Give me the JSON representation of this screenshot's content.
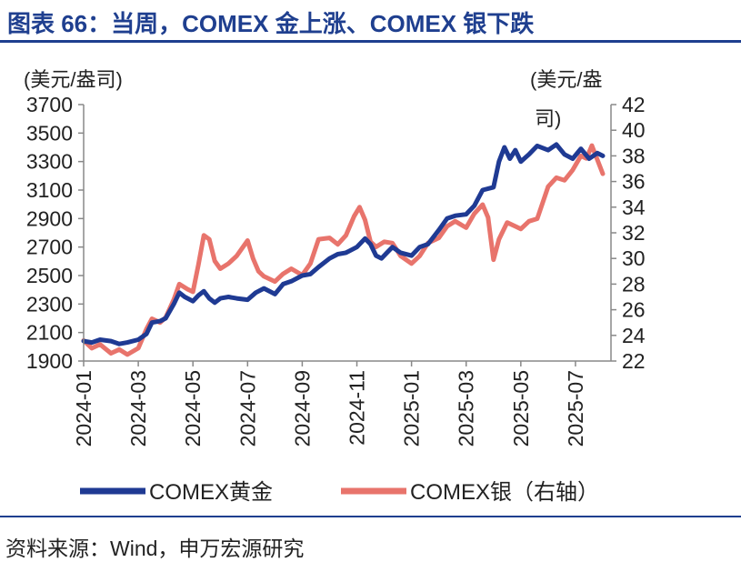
{
  "figure": {
    "title": "图表 66：当周，COMEX 金上涨、COMEX 银下跌",
    "source": "资料来源：Wind，申万宏源研究"
  },
  "chart_data": {
    "type": "line",
    "left_unit": "(美元/盎司)",
    "right_unit_line1": "(美元/盎",
    "right_unit_line2": "司)",
    "x_tick_labels": [
      "2024-01",
      "2024-03",
      "2024-05",
      "2024-07",
      "2024-09",
      "2024-11",
      "2025-01",
      "2025-03",
      "2025-05",
      "2025-07"
    ],
    "x_range_months": [
      0,
      19.3
    ],
    "y_left": {
      "range": [
        1900,
        3700
      ],
      "ticks": [
        "3700",
        "3500",
        "3300",
        "3100",
        "2900",
        "2700",
        "2500",
        "2300",
        "2100",
        "1900"
      ]
    },
    "y_right": {
      "range": [
        22,
        42
      ],
      "ticks": [
        "42",
        "40",
        "38",
        "36",
        "34",
        "32",
        "30",
        "28",
        "26",
        "24",
        "22"
      ]
    },
    "series": [
      {
        "name": "COMEX黄金",
        "axis": "left",
        "color": "#1f3a93",
        "points": [
          [
            0,
            2040
          ],
          [
            0.3,
            2030
          ],
          [
            0.6,
            2050
          ],
          [
            1.0,
            2040
          ],
          [
            1.3,
            2020
          ],
          [
            1.6,
            2030
          ],
          [
            2.0,
            2050
          ],
          [
            2.3,
            2090
          ],
          [
            2.5,
            2170
          ],
          [
            2.8,
            2180
          ],
          [
            3.0,
            2200
          ],
          [
            3.3,
            2300
          ],
          [
            3.5,
            2380
          ],
          [
            3.7,
            2350
          ],
          [
            4.0,
            2320
          ],
          [
            4.2,
            2360
          ],
          [
            4.4,
            2390
          ],
          [
            4.6,
            2340
          ],
          [
            4.8,
            2310
          ],
          [
            5.0,
            2340
          ],
          [
            5.3,
            2350
          ],
          [
            5.6,
            2340
          ],
          [
            6.0,
            2330
          ],
          [
            6.3,
            2380
          ],
          [
            6.6,
            2410
          ],
          [
            7.0,
            2370
          ],
          [
            7.3,
            2440
          ],
          [
            7.6,
            2460
          ],
          [
            8.0,
            2500
          ],
          [
            8.3,
            2510
          ],
          [
            8.6,
            2560
          ],
          [
            9.0,
            2620
          ],
          [
            9.3,
            2650
          ],
          [
            9.6,
            2660
          ],
          [
            10.0,
            2700
          ],
          [
            10.3,
            2760
          ],
          [
            10.5,
            2720
          ],
          [
            10.7,
            2640
          ],
          [
            10.9,
            2620
          ],
          [
            11.1,
            2660
          ],
          [
            11.3,
            2700
          ],
          [
            11.6,
            2660
          ],
          [
            12.0,
            2640
          ],
          [
            12.3,
            2700
          ],
          [
            12.6,
            2720
          ],
          [
            13.0,
            2820
          ],
          [
            13.3,
            2900
          ],
          [
            13.6,
            2920
          ],
          [
            14.0,
            2930
          ],
          [
            14.3,
            2990
          ],
          [
            14.6,
            3100
          ],
          [
            15.0,
            3120
          ],
          [
            15.2,
            3300
          ],
          [
            15.4,
            3400
          ],
          [
            15.6,
            3320
          ],
          [
            15.8,
            3380
          ],
          [
            16.0,
            3300
          ],
          [
            16.3,
            3350
          ],
          [
            16.6,
            3410
          ],
          [
            17.0,
            3380
          ],
          [
            17.3,
            3420
          ],
          [
            17.6,
            3350
          ],
          [
            17.9,
            3320
          ],
          [
            18.2,
            3390
          ],
          [
            18.5,
            3320
          ],
          [
            18.8,
            3360
          ],
          [
            19.0,
            3340
          ]
        ]
      },
      {
        "name": "COMEX银（右轴）",
        "axis": "right",
        "color": "#e8746c",
        "points": [
          [
            0,
            23.6
          ],
          [
            0.3,
            23.0
          ],
          [
            0.6,
            23.3
          ],
          [
            1.0,
            22.6
          ],
          [
            1.3,
            22.9
          ],
          [
            1.6,
            22.5
          ],
          [
            2.0,
            23.0
          ],
          [
            2.3,
            24.5
          ],
          [
            2.5,
            25.3
          ],
          [
            2.8,
            25.0
          ],
          [
            3.0,
            25.4
          ],
          [
            3.3,
            26.8
          ],
          [
            3.5,
            28.0
          ],
          [
            3.8,
            27.6
          ],
          [
            4.0,
            27.4
          ],
          [
            4.2,
            29.5
          ],
          [
            4.4,
            31.8
          ],
          [
            4.6,
            31.5
          ],
          [
            4.8,
            29.8
          ],
          [
            5.0,
            29.2
          ],
          [
            5.3,
            29.6
          ],
          [
            5.6,
            30.2
          ],
          [
            6.0,
            31.4
          ],
          [
            6.2,
            30.0
          ],
          [
            6.4,
            29.0
          ],
          [
            6.6,
            28.6
          ],
          [
            7.0,
            28.2
          ],
          [
            7.3,
            28.8
          ],
          [
            7.6,
            29.2
          ],
          [
            8.0,
            28.7
          ],
          [
            8.3,
            29.6
          ],
          [
            8.6,
            31.5
          ],
          [
            9.0,
            31.6
          ],
          [
            9.3,
            31.1
          ],
          [
            9.6,
            31.8
          ],
          [
            9.9,
            33.3
          ],
          [
            10.1,
            34.0
          ],
          [
            10.3,
            33.0
          ],
          [
            10.5,
            31.3
          ],
          [
            10.7,
            30.9
          ],
          [
            11.0,
            31.3
          ],
          [
            11.3,
            31.2
          ],
          [
            11.6,
            30.2
          ],
          [
            12.0,
            29.6
          ],
          [
            12.3,
            30.2
          ],
          [
            12.6,
            31.2
          ],
          [
            13.0,
            31.6
          ],
          [
            13.3,
            32.5
          ],
          [
            13.6,
            32.9
          ],
          [
            14.0,
            32.4
          ],
          [
            14.3,
            33.5
          ],
          [
            14.6,
            34.2
          ],
          [
            14.8,
            33.2
          ],
          [
            15.0,
            29.9
          ],
          [
            15.2,
            31.5
          ],
          [
            15.5,
            32.8
          ],
          [
            15.8,
            32.5
          ],
          [
            16.0,
            32.3
          ],
          [
            16.3,
            32.9
          ],
          [
            16.6,
            33.1
          ],
          [
            17.0,
            35.6
          ],
          [
            17.3,
            36.3
          ],
          [
            17.6,
            36.1
          ],
          [
            17.9,
            36.9
          ],
          [
            18.2,
            38.0
          ],
          [
            18.4,
            37.8
          ],
          [
            18.6,
            38.8
          ],
          [
            18.8,
            37.7
          ],
          [
            19.0,
            36.6
          ]
        ]
      }
    ],
    "legend": [
      {
        "label": "COMEX黄金",
        "color": "#1f3a93"
      },
      {
        "label": "COMEX银（右轴）",
        "color": "#e8746c"
      }
    ]
  }
}
